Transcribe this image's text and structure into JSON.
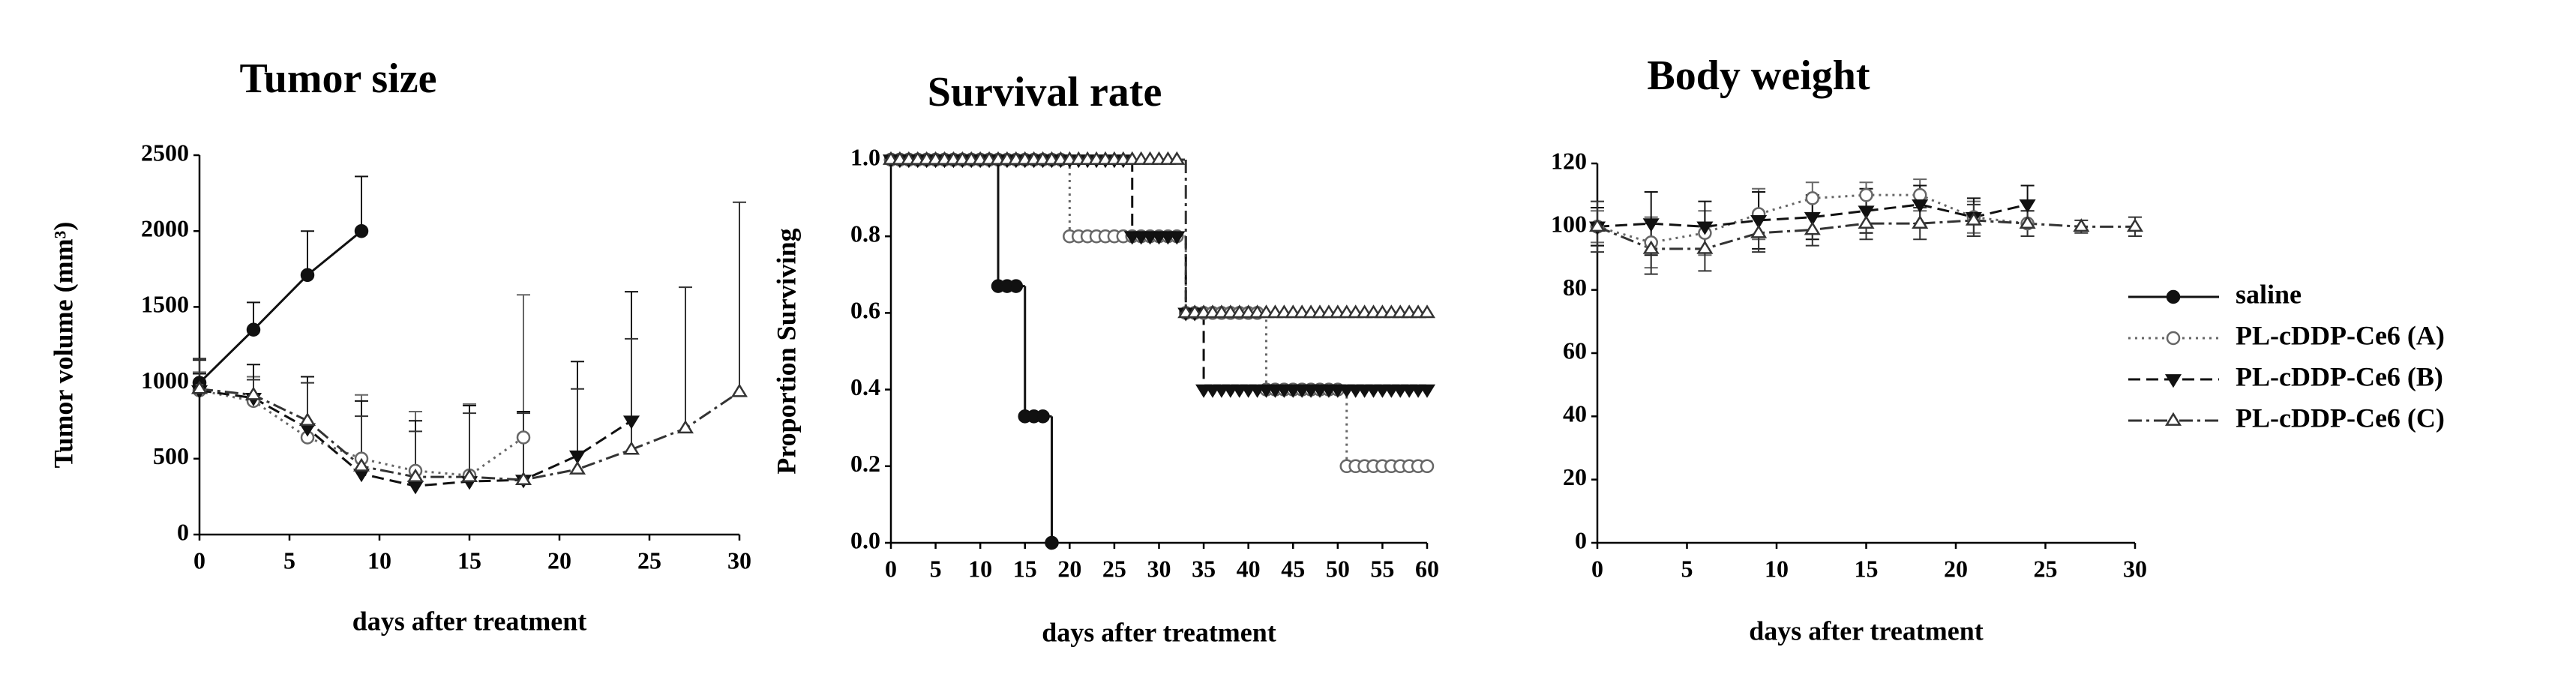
{
  "chart_data": [
    {
      "type": "line",
      "title": "Tumor size",
      "x_label": "days after treatment",
      "y_label": "Tumor volume (mm³)",
      "xlim": [
        0,
        30
      ],
      "xticks": [
        0,
        5,
        10,
        15,
        20,
        25,
        30
      ],
      "ylim": [
        0,
        2500
      ],
      "yticks": [
        0,
        500,
        1000,
        1500,
        2000,
        2500
      ],
      "error_direction": "up",
      "series": [
        {
          "marker": "circle-filled",
          "dash": "solid",
          "color": "#111",
          "x": [
            0,
            3,
            6,
            9
          ],
          "values": [
            1000,
            1350,
            1710,
            2000
          ],
          "errors": [
            150,
            180,
            290,
            360
          ]
        },
        {
          "marker": "circle-open",
          "dash": "dotted",
          "color": "#666",
          "x": [
            0,
            3,
            6,
            9,
            12,
            15,
            18
          ],
          "values": [
            950,
            880,
            640,
            500,
            420,
            390,
            640
          ],
          "errors": [
            120,
            160,
            400,
            420,
            390,
            470,
            940
          ]
        },
        {
          "marker": "triangle-down-filled",
          "dash": "dashed",
          "color": "#111",
          "x": [
            0,
            3,
            6,
            9,
            12,
            15,
            18,
            21,
            24
          ],
          "values": [
            950,
            900,
            700,
            400,
            320,
            350,
            360,
            520,
            750
          ],
          "errors": [
            110,
            220,
            340,
            480,
            430,
            500,
            450,
            620,
            850
          ]
        },
        {
          "marker": "triangle-up-open",
          "dash": "dashdot",
          "color": "#333",
          "x": [
            0,
            3,
            6,
            9,
            12,
            15,
            18,
            21,
            24,
            27,
            30
          ],
          "values": [
            960,
            920,
            750,
            450,
            380,
            380,
            360,
            430,
            560,
            700,
            940
          ],
          "errors": [
            200,
            100,
            250,
            330,
            300,
            420,
            440,
            530,
            730,
            930,
            1250
          ]
        }
      ]
    },
    {
      "type": "step",
      "title": "Survival rate",
      "x_label": "days after treatment",
      "y_label": "Proportion Surviving",
      "xlim": [
        0,
        60
      ],
      "xticks": [
        0,
        5,
        10,
        15,
        20,
        25,
        30,
        35,
        40,
        45,
        50,
        55,
        60
      ],
      "ylim": [
        0,
        1
      ],
      "yticks": [
        {
          "value": 0,
          "label": "0.0"
        },
        0.2,
        0.4,
        0.6,
        0.8,
        {
          "value": 1,
          "label": "1.0"
        }
      ],
      "series": [
        {
          "marker": "circle-filled",
          "dash": "solid",
          "color": "#111",
          "x": [
            0,
            12,
            15,
            18
          ],
          "values": [
            1,
            0.67,
            0.33,
            0
          ]
        },
        {
          "marker": "circle-open",
          "dash": "dotted",
          "color": "#666",
          "x": [
            0,
            20,
            33,
            42,
            51,
            60
          ],
          "values": [
            1,
            0.8,
            0.6,
            0.4,
            0.2,
            0.2
          ]
        },
        {
          "marker": "triangle-down-filled",
          "dash": "dashed",
          "color": "#111",
          "x": [
            0,
            27,
            33,
            35,
            60
          ],
          "values": [
            1,
            0.8,
            0.6,
            0.4,
            0.4
          ]
        },
        {
          "marker": "triangle-up-open",
          "dash": "dashdot",
          "color": "#333",
          "x": [
            0,
            33,
            60
          ],
          "values": [
            1,
            0.6,
            0.6
          ]
        }
      ]
    },
    {
      "type": "line",
      "title": "Body weight",
      "x_label": "days after treatment",
      "xlim": [
        0,
        30
      ],
      "xticks": [
        0,
        5,
        10,
        15,
        20,
        25,
        30
      ],
      "ylim": [
        0,
        120
      ],
      "yticks": [
        0,
        20,
        40,
        60,
        80,
        100,
        120
      ],
      "error_direction": "both",
      "legend": "right",
      "series": [
        {
          "name": "saline",
          "marker": "circle-filled",
          "dash": "solid",
          "color": "#111",
          "x": [
            0
          ],
          "values": [
            100
          ],
          "errors": [
            6
          ]
        },
        {
          "name": "PL-cDDP-Ce6 (A)",
          "marker": "circle-open",
          "dash": "dotted",
          "color": "#666",
          "x": [
            0,
            3,
            6,
            9,
            12,
            15,
            18,
            21,
            24
          ],
          "values": [
            100,
            95,
            98,
            104,
            109,
            110,
            110,
            103,
            101
          ],
          "errors": [
            5,
            8,
            7,
            8,
            5,
            4,
            5,
            5,
            4
          ]
        },
        {
          "name": "PL-cDDP-Ce6 (B)",
          "marker": "triangle-down-filled",
          "dash": "dashed",
          "color": "#111",
          "x": [
            0,
            3,
            6,
            9,
            12,
            15,
            18,
            21,
            24
          ],
          "values": [
            100,
            101,
            100,
            102,
            103,
            105,
            107,
            103,
            107
          ],
          "errors": [
            6,
            10,
            8,
            9,
            7,
            7,
            6,
            6,
            6
          ]
        },
        {
          "name": "PL-cDDP-Ce6 (C)",
          "marker": "triangle-up-open",
          "dash": "dashdot",
          "color": "#333",
          "x": [
            0,
            3,
            6,
            9,
            12,
            15,
            18,
            21,
            24,
            27,
            30
          ],
          "values": [
            100,
            93,
            93,
            98,
            99,
            101,
            101,
            102,
            101,
            100,
            100
          ],
          "errors": [
            8,
            8,
            7,
            6,
            5,
            5,
            5,
            5,
            4,
            2,
            3
          ]
        }
      ]
    }
  ]
}
